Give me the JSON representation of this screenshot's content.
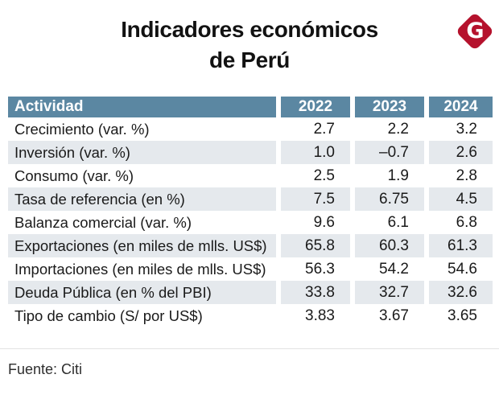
{
  "title": {
    "line1": "Indicadores económicos",
    "line2": "de Perú"
  },
  "logo": {
    "letter": "G"
  },
  "chart_data": {
    "type": "table",
    "title": "Indicadores económicos de Perú",
    "columns": [
      "Actividad",
      "2022",
      "2023",
      "2024"
    ],
    "rows": [
      {
        "label": "Crecimiento (var. %)",
        "values": [
          "2.7",
          "2.2",
          "3.2"
        ]
      },
      {
        "label": "Inversión (var. %)",
        "values": [
          "1.0",
          "–0.7",
          "2.6"
        ]
      },
      {
        "label": "Consumo (var. %)",
        "values": [
          "2.5",
          "1.9",
          "2.8"
        ]
      },
      {
        "label": "Tasa de referencia (en %)",
        "values": [
          "7.5",
          "6.75",
          "4.5"
        ]
      },
      {
        "label": "Balanza comercial (var. %)",
        "values": [
          "9.6",
          "6.1",
          "6.8"
        ]
      },
      {
        "label": "Exportaciones (en miles de mlls. US$)",
        "values": [
          "65.8",
          "60.3",
          "61.3"
        ]
      },
      {
        "label": "Importaciones (en miles de mlls. US$)",
        "values": [
          "56.3",
          "54.2",
          "54.6"
        ]
      },
      {
        "label": "Deuda Pública (en % del PBI)",
        "values": [
          "33.8",
          "32.7",
          "32.6"
        ]
      },
      {
        "label": "Tipo de cambio (S/ por US$)",
        "values": [
          "3.83",
          "3.67",
          "3.65"
        ]
      }
    ],
    "source": "Fuente: Citi"
  },
  "colors": {
    "header_bg": "#5b87a2",
    "row_alt_bg": "#e5e9ed",
    "logo_red": "#b5122d",
    "text": "#1a1a1a"
  }
}
